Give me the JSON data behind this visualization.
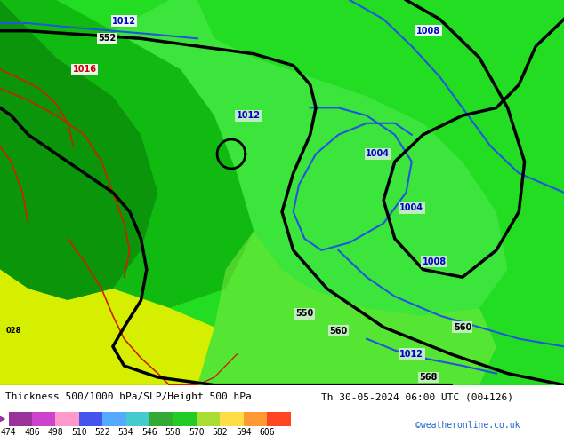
{
  "title_left": "Thickness 500/1000 hPa/SLP/Height 500 hPa",
  "title_right": "Th 30-05-2024 06:00 UTC (00+126)",
  "watermark": "©weatheronline.co.uk",
  "colorbar_values": [
    474,
    486,
    498,
    510,
    522,
    534,
    546,
    558,
    570,
    582,
    594,
    606
  ],
  "colorbar_colors": [
    "#993399",
    "#cc44cc",
    "#ff99cc",
    "#4455ee",
    "#55aaff",
    "#44cccc",
    "#33aa33",
    "#22cc22",
    "#aadd33",
    "#ffdd44",
    "#ff9933",
    "#ff4422"
  ],
  "map_bg": "#22cc22",
  "fig_width": 6.34,
  "fig_height": 4.9,
  "colorbar_label_fontsize": 7,
  "title_fontsize": 8,
  "watermark_color": "#2266cc",
  "watermark_fontsize": 7,
  "label_bg": "#cceecc",
  "label_blue_color": "#0000cc",
  "label_black_color": "#000000",
  "label_red_color": "#cc0000"
}
